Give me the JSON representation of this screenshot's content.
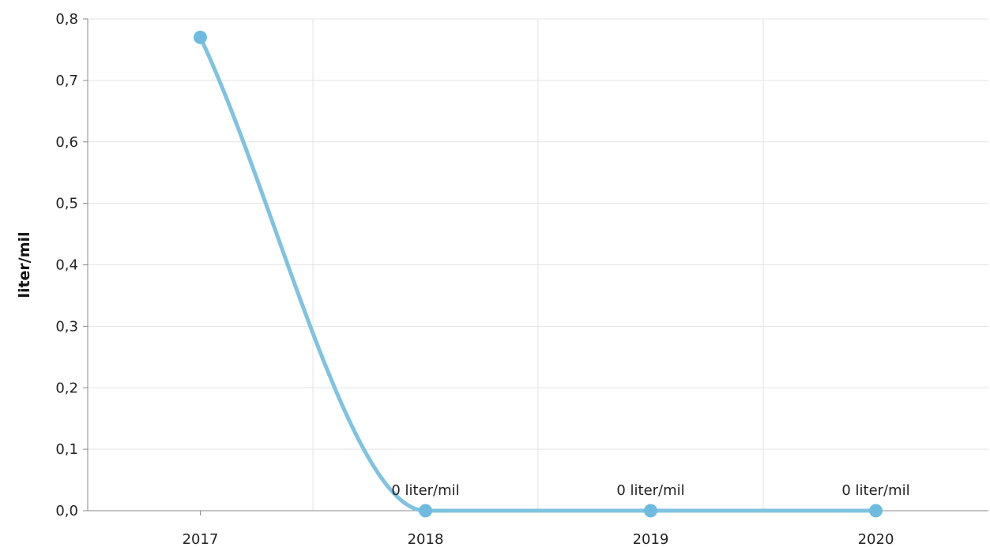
{
  "chart_data": {
    "type": "line",
    "categories": [
      "2017",
      "2018",
      "2019",
      "2020"
    ],
    "series": [
      {
        "values": [
          0.77,
          0,
          0,
          0
        ],
        "color": "#7fc3e1",
        "marker_color": "#6fbbe0",
        "smooth": true
      }
    ],
    "data_labels": [
      "",
      "0 liter/mil",
      "0 liter/mil",
      "0 liter/mil"
    ],
    "ylabel": "liter/mil",
    "xlabel": "",
    "title": "",
    "ylim": [
      0,
      0.8
    ],
    "yticks": [
      0,
      0.1,
      0.2,
      0.3,
      0.4,
      0.5,
      0.6,
      0.7,
      0.8
    ],
    "ytick_labels": [
      "0,0",
      "0,1",
      "0,2",
      "0,3",
      "0,4",
      "0,5",
      "0,6",
      "0,7",
      "0,8"
    ],
    "grid": true,
    "legend": "none"
  }
}
